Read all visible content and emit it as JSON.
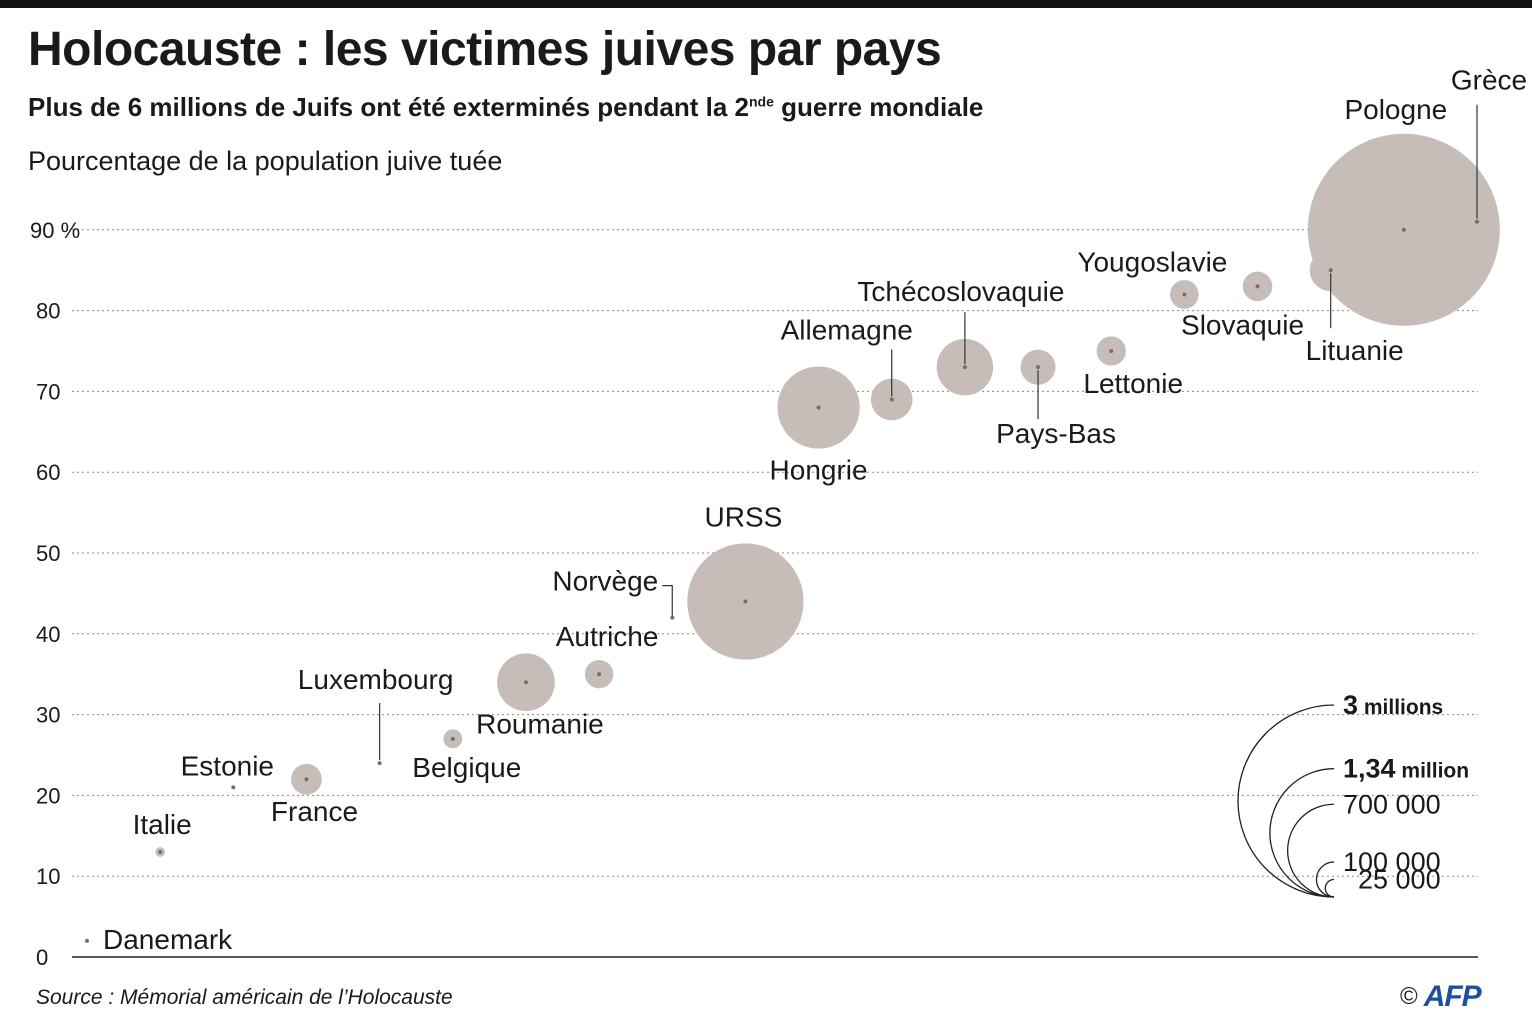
{
  "header": {
    "title": "Holocauste : les victimes juives par pays",
    "subtitle_main": "Plus de 6 millions de Juifs ont été exterminés pendant la 2",
    "subtitle_sup": "nde",
    "subtitle_end": " guerre mondiale"
  },
  "footer": {
    "source": "Source : Mémorial américain de l’Holocauste",
    "copyright": "©",
    "logo": "AFP"
  },
  "colors": {
    "bubble": "#c6bdb8",
    "dot": "#7a6d66",
    "grid": "#8a8a8a",
    "text": "#1a1a1a"
  },
  "chart_data": {
    "type": "scatter",
    "ylabel": "Pourcentage de la population juive tuée",
    "y_ticks": [
      "0",
      "10",
      "20",
      "30",
      "40",
      "50",
      "60",
      "70",
      "80",
      "90 %"
    ],
    "ylim": [
      0,
      90
    ],
    "grid": true,
    "size_legend": [
      {
        "bold": "3",
        "rest": " millions",
        "victims": 3000000
      },
      {
        "bold": "1,34",
        "rest": " million",
        "victims": 1340000
      },
      {
        "bold": "",
        "rest": "700 000",
        "victims": 700000
      },
      {
        "bold": "",
        "rest": "100 000",
        "victims": 100000
      },
      {
        "bold": "",
        "rest": "25 000",
        "victims": 25000
      }
    ],
    "points": [
      {
        "country": "Danemark",
        "percent": 2,
        "victims": 60
      },
      {
        "country": "Italie",
        "percent": 13,
        "victims": 7700
      },
      {
        "country": "Estonie",
        "percent": 21,
        "victims": 1000
      },
      {
        "country": "France",
        "percent": 22,
        "victims": 77000
      },
      {
        "country": "Luxembourg",
        "percent": 24,
        "victims": 1950
      },
      {
        "country": "Belgique",
        "percent": 27,
        "victims": 28900
      },
      {
        "country": "Roumanie",
        "percent": 34,
        "victims": 271000
      },
      {
        "country": "Autriche",
        "percent": 35,
        "victims": 65500
      },
      {
        "country": "Norvège",
        "percent": 42,
        "victims": 760
      },
      {
        "country": "URSS",
        "percent": 44,
        "victims": 1100000
      },
      {
        "country": "Hongrie",
        "percent": 68,
        "victims": 550000
      },
      {
        "country": "Allemagne",
        "percent": 69,
        "victims": 141500
      },
      {
        "country": "Tchécoslovaquie",
        "percent": 73,
        "victims": 260000
      },
      {
        "country": "Pays-Bas",
        "percent": 73,
        "victims": 100000
      },
      {
        "country": "Lettonie",
        "percent": 75,
        "victims": 70000
      },
      {
        "country": "Yougoslavie",
        "percent": 82,
        "victims": 67000
      },
      {
        "country": "Slovaquie",
        "percent": 83,
        "victims": 71000
      },
      {
        "country": "Lituanie",
        "percent": 85,
        "victims": 143000
      },
      {
        "country": "Pologne",
        "percent": 90,
        "victims": 3000000
      },
      {
        "country": "Grèce",
        "percent": 91,
        "victims": 67000
      }
    ]
  }
}
